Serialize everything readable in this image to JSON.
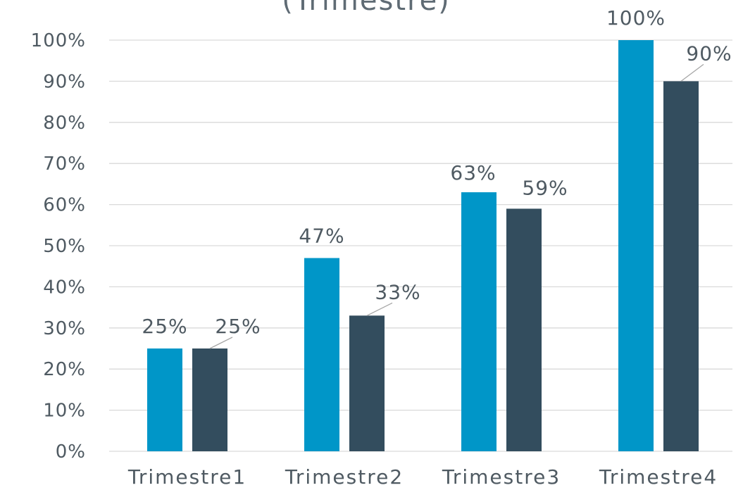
{
  "chart_data": {
    "type": "bar",
    "title": "(Trimestre)",
    "xlabel": "",
    "ylabel": "",
    "categories": [
      "Trimestre1",
      "Trimestre2",
      "Trimestre3",
      "Trimestre4"
    ],
    "series": [
      {
        "values": [
          25,
          47,
          63,
          100
        ],
        "labels": [
          "25%",
          "47%",
          "63%",
          "100%"
        ],
        "color": "#0096c8"
      },
      {
        "values": [
          25,
          33,
          59,
          90
        ],
        "labels": [
          "25%",
          "33%",
          "59%",
          "90%"
        ],
        "color": "#334d5e"
      }
    ],
    "ylim": [
      0,
      100
    ],
    "yticks": [
      0,
      10,
      20,
      30,
      40,
      50,
      60,
      70,
      80,
      90,
      100
    ],
    "ytick_labels": [
      "0%",
      "10%",
      "20%",
      "30%",
      "40%",
      "50%",
      "60%",
      "70%",
      "80%",
      "90%",
      "100%"
    ],
    "grid": true,
    "legend": "none"
  }
}
